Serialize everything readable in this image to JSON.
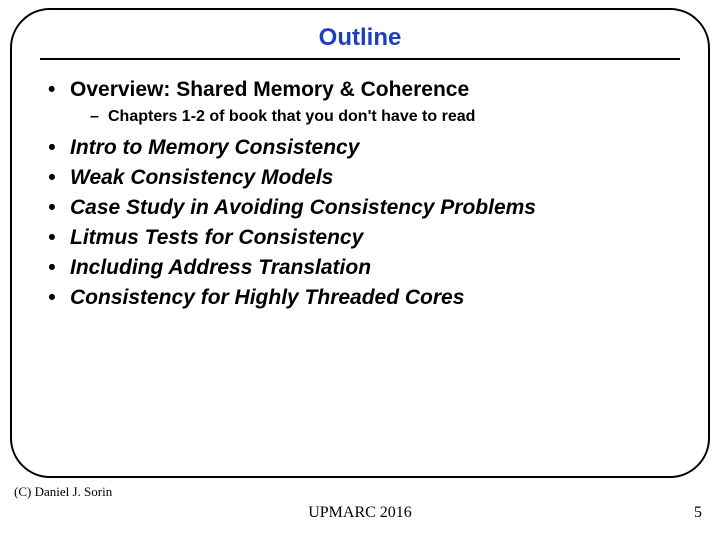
{
  "slide": {
    "title": "Outline",
    "title_color": "#1f3fbf",
    "bullets": [
      {
        "text": "Overview: Shared Memory & Coherence",
        "italic": false,
        "sub": [
          {
            "text": "Chapters 1-2 of book that you don't have to read"
          }
        ]
      },
      {
        "text": "Intro to Memory Consistency",
        "italic": true
      },
      {
        "text": "Weak Consistency Models",
        "italic": true
      },
      {
        "text": "Case Study in Avoiding Consistency Problems",
        "italic": true
      },
      {
        "text": "Litmus Tests for Consistency",
        "italic": true
      },
      {
        "text": "Including Address Translation",
        "italic": true
      },
      {
        "text": "Consistency for Highly Threaded Cores",
        "italic": true
      }
    ]
  },
  "footer": {
    "copyright": "(C) Daniel J. Sorin",
    "conference": "UPMARC 2016",
    "page": "5"
  }
}
